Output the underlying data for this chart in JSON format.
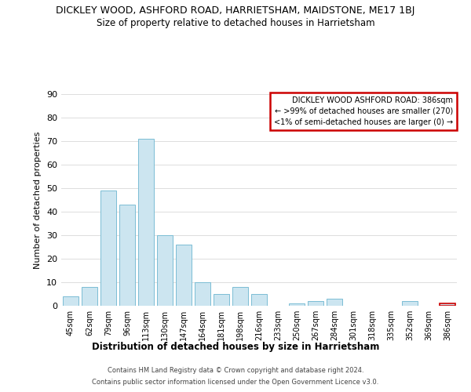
{
  "title": "DICKLEY WOOD, ASHFORD ROAD, HARRIETSHAM, MAIDSTONE, ME17 1BJ",
  "subtitle": "Size of property relative to detached houses in Harrietsham",
  "xlabel": "Distribution of detached houses by size in Harrietsham",
  "ylabel": "Number of detached properties",
  "bar_labels": [
    "45sqm",
    "62sqm",
    "79sqm",
    "96sqm",
    "113sqm",
    "130sqm",
    "147sqm",
    "164sqm",
    "181sqm",
    "198sqm",
    "216sqm",
    "233sqm",
    "250sqm",
    "267sqm",
    "284sqm",
    "301sqm",
    "318sqm",
    "335sqm",
    "352sqm",
    "369sqm",
    "386sqm"
  ],
  "bar_values": [
    4,
    8,
    49,
    43,
    71,
    30,
    26,
    10,
    5,
    8,
    5,
    0,
    1,
    2,
    3,
    0,
    0,
    0,
    2,
    0,
    1
  ],
  "bar_color": "#cce5f0",
  "bar_edge_color": "#7bbdd4",
  "ylim": [
    0,
    90
  ],
  "yticks": [
    0,
    10,
    20,
    30,
    40,
    50,
    60,
    70,
    80,
    90
  ],
  "highlight_bar_index": 20,
  "highlight_bar_edge_color": "#cc0000",
  "legend_title": "DICKLEY WOOD ASHFORD ROAD: 386sqm",
  "legend_line1": "← >99% of detached houses are smaller (270)",
  "legend_line2": "<1% of semi-detached houses are larger (0) →",
  "legend_box_edge_color": "#cc0000",
  "footer_line1": "Contains HM Land Registry data © Crown copyright and database right 2024.",
  "footer_line2": "Contains public sector information licensed under the Open Government Licence v3.0.",
  "background_color": "#ffffff",
  "grid_color": "#dddddd"
}
